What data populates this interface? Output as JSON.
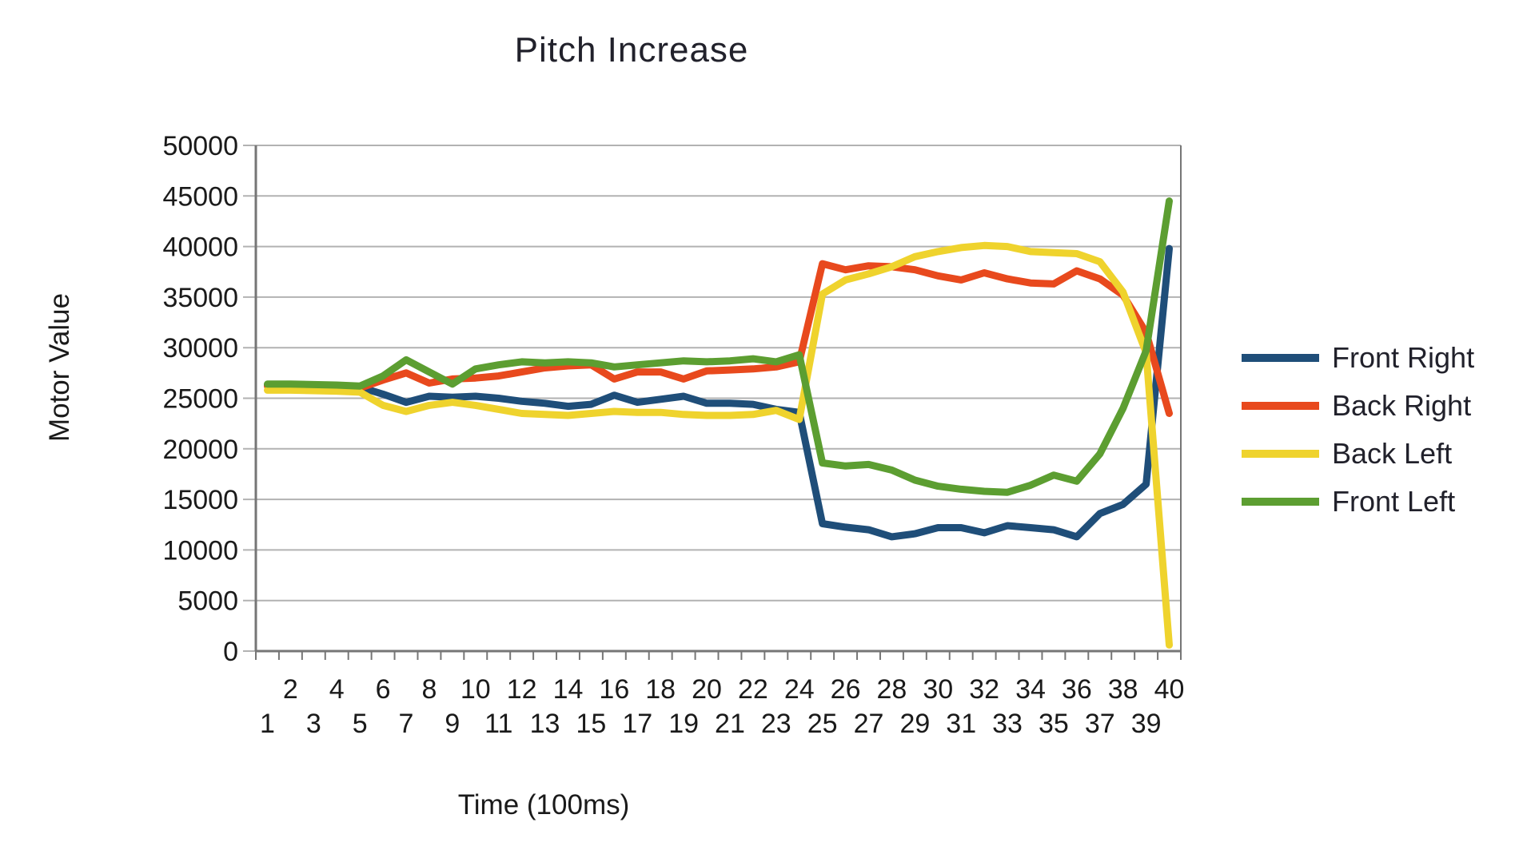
{
  "chart_data": {
    "type": "line",
    "title": "Pitch Increase",
    "xlabel": "Time (100ms)",
    "ylabel": "Motor Value",
    "x": [
      1,
      2,
      3,
      4,
      5,
      6,
      7,
      8,
      9,
      10,
      11,
      12,
      13,
      14,
      15,
      16,
      17,
      18,
      19,
      20,
      21,
      22,
      23,
      24,
      25,
      26,
      27,
      28,
      29,
      30,
      31,
      32,
      33,
      34,
      35,
      36,
      37,
      38,
      39,
      40
    ],
    "ylim": [
      0,
      50000
    ],
    "yticks": [
      0,
      5000,
      10000,
      15000,
      20000,
      25000,
      30000,
      35000,
      40000,
      45000,
      50000
    ],
    "grid": true,
    "legend_position": "right",
    "series": [
      {
        "name": "Front Right",
        "color": "#1F4E79",
        "values": [
          26300,
          26300,
          26250,
          26200,
          26100,
          25400,
          24600,
          25200,
          25100,
          25200,
          25000,
          24700,
          24500,
          24200,
          24400,
          25300,
          24600,
          24900,
          25200,
          24500,
          24500,
          24400,
          23900,
          23600,
          12600,
          12250,
          12000,
          11300,
          11600,
          12200,
          12200,
          11700,
          12400,
          12200,
          12000,
          11300,
          13600,
          14500,
          16500,
          39800
        ]
      },
      {
        "name": "Back Right",
        "color": "#E8491D",
        "values": [
          26200,
          26200,
          26150,
          26100,
          26000,
          26800,
          27500,
          26500,
          26900,
          27000,
          27200,
          27600,
          28000,
          28200,
          28300,
          26900,
          27600,
          27600,
          26900,
          27700,
          27800,
          27900,
          28100,
          28600,
          38300,
          37700,
          38100,
          38000,
          37700,
          37100,
          36700,
          37400,
          36800,
          36400,
          36300,
          37600,
          36800,
          35200,
          31500,
          23500
        ]
      },
      {
        "name": "Back Left",
        "color": "#EFD32D",
        "values": [
          25800,
          25800,
          25750,
          25700,
          25600,
          24300,
          23700,
          24300,
          24600,
          24300,
          23900,
          23500,
          23400,
          23300,
          23500,
          23700,
          23600,
          23600,
          23400,
          23300,
          23300,
          23400,
          23800,
          22900,
          35300,
          36700,
          37300,
          38000,
          39000,
          39500,
          39900,
          40100,
          40000,
          39500,
          39400,
          39300,
          38500,
          35500,
          29500,
          600
        ]
      },
      {
        "name": "Front Left",
        "color": "#5C9E31",
        "values": [
          26400,
          26400,
          26350,
          26300,
          26200,
          27200,
          28800,
          27600,
          26400,
          27900,
          28300,
          28600,
          28500,
          28600,
          28500,
          28100,
          28300,
          28500,
          28700,
          28600,
          28700,
          28900,
          28600,
          29300,
          18600,
          18300,
          18450,
          17900,
          16900,
          16300,
          16000,
          15800,
          15700,
          16400,
          17400,
          16800,
          19500,
          24000,
          29700,
          44500
        ]
      }
    ],
    "style": {
      "grid_color": "#b2b2b2",
      "axis_color": "#767676",
      "text_color": "#1a1a1a",
      "background": "#ffffff"
    }
  }
}
